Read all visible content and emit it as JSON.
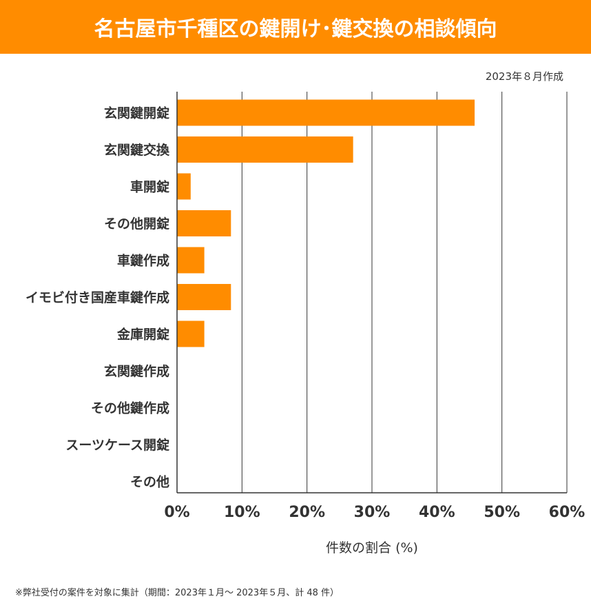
{
  "title": "名古屋市千種区の鍵開け･鍵交換の相談傾向",
  "created": "2023年８月作成",
  "footnote": "※弊社受付の案件を対象に集計（期間：2023年１月～ 2023年５月、計 48 件）",
  "colors": {
    "accent": "#FF8C00",
    "bar": "#FF8C00",
    "grid": "#333333"
  },
  "chart_data": {
    "type": "bar",
    "orientation": "horizontal",
    "title": "名古屋市千種区の鍵開け･鍵交換の相談傾向",
    "xlabel": "件数の割合 (%)",
    "ylabel": "",
    "xlim": [
      0,
      60
    ],
    "xticks": [
      "0%",
      "10%",
      "20%",
      "30%",
      "40%",
      "50%",
      "60%"
    ],
    "grid": true,
    "categories": [
      "玄関鍵開錠",
      "玄関鍵交換",
      "車開錠",
      "その他開錠",
      "車鍵作成",
      "イモビ付き国産車鍵作成",
      "金庫開錠",
      "玄関鍵作成",
      "その他鍵作成",
      "スーツケース開錠",
      "その他"
    ],
    "values": [
      45.8,
      27.1,
      2.1,
      8.3,
      4.2,
      8.3,
      4.2,
      0,
      0,
      0,
      0
    ]
  }
}
